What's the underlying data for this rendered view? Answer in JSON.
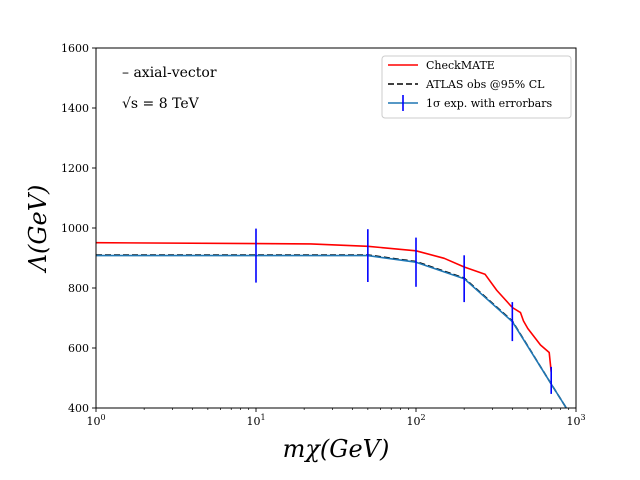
{
  "chart_data": {
    "type": "line",
    "xscale": "log",
    "xlim": [
      1,
      1000
    ],
    "ylim": [
      400,
      1600
    ],
    "x_ticks": [
      1,
      10,
      100,
      1000
    ],
    "x_tick_labels": [
      {
        "base": "10",
        "exp": "0"
      },
      {
        "base": "10",
        "exp": "1"
      },
      {
        "base": "10",
        "exp": "2"
      },
      {
        "base": "10",
        "exp": "3"
      }
    ],
    "y_ticks": [
      400,
      600,
      800,
      1000,
      1200,
      1400,
      1600
    ],
    "y_tick_labels": [
      "400",
      "600",
      "800",
      "1000",
      "1200",
      "1400",
      "1600"
    ],
    "xlabel": "mχ(GeV)",
    "ylabel": "Λ(GeV)",
    "annotations": [
      "– axial-vector",
      "√s = 8 TeV"
    ],
    "legend": {
      "position": "upper right",
      "entries": [
        "CheckMATE",
        "ATLAS obs @95% CL",
        "1σ exp. with errorbars"
      ]
    },
    "grid": false,
    "series": [
      {
        "name": "CheckMATE",
        "color": "#ff0000",
        "style": "solid",
        "x": [
          1,
          10,
          22,
          50,
          100,
          150,
          200,
          270,
          320,
          400,
          450,
          470,
          500,
          600,
          680,
          700
        ],
        "y": [
          951,
          948,
          947,
          939,
          924,
          899,
          870,
          846,
          792,
          735,
          718,
          690,
          665,
          610,
          585,
          520
        ]
      },
      {
        "name": "ATLAS obs @95% CL",
        "color": "#000000",
        "style": "dashed",
        "x": [
          1,
          10,
          50,
          100,
          200,
          400,
          700,
          870
        ],
        "y": [
          910,
          910,
          910,
          888,
          833,
          690,
          480,
          400
        ]
      },
      {
        "name": "1σ exp. with errorbars",
        "color": "#1f77b4",
        "style": "solid",
        "x": [
          1,
          10,
          50,
          100,
          200,
          400,
          700,
          870
        ],
        "y": [
          908,
          908,
          908,
          886,
          831,
          688,
          480,
          400
        ]
      }
    ],
    "errorbars": {
      "color": "#0000ff",
      "x": [
        10,
        50,
        100,
        200,
        400,
        700
      ],
      "y": [
        908,
        908,
        886,
        831,
        688,
        492
      ],
      "yerr": [
        90,
        88,
        82,
        78,
        65,
        45
      ]
    }
  }
}
